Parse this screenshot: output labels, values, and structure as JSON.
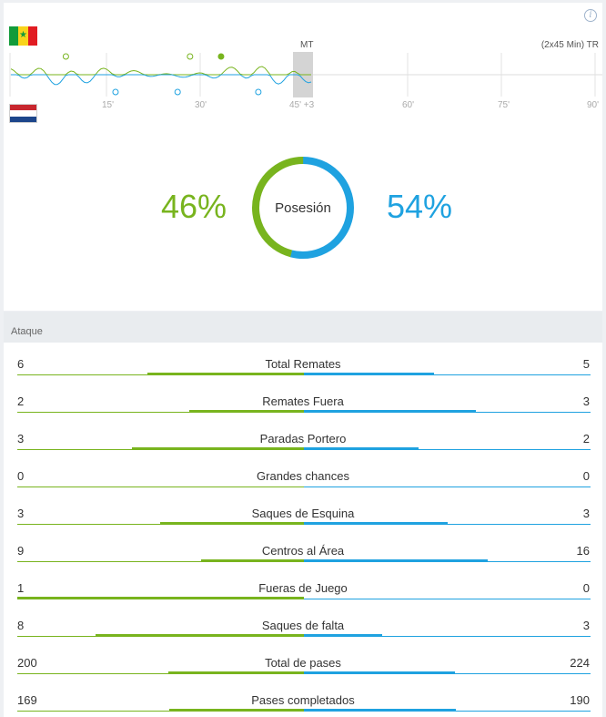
{
  "teams": {
    "home": {
      "name": "Senegal",
      "flag": "senegal-flag",
      "color": "#78b41e"
    },
    "away": {
      "name": "Netherlands",
      "flag": "netherlands-flag",
      "color": "#1fa2e0"
    }
  },
  "momentum": {
    "half_time_label": "MT",
    "format_label": "(2x45 Min) TR",
    "ticks": [
      "15'",
      "30'",
      "45' +3",
      "60'",
      "75'",
      "90'"
    ],
    "tick_minutes": [
      15,
      30,
      45,
      60,
      75,
      90
    ],
    "home_events": [
      {
        "minute": 9,
        "type": "shot"
      },
      {
        "minute": 29,
        "type": "shot"
      },
      {
        "minute": 34,
        "type": "goal-chance"
      }
    ],
    "away_events": [
      {
        "minute": 17,
        "type": "shot"
      },
      {
        "minute": 27,
        "type": "shot"
      },
      {
        "minute": 40,
        "type": "shot"
      }
    ]
  },
  "possession": {
    "label": "Posesión",
    "home_pct": 46,
    "away_pct": 54,
    "home_text": "46%",
    "away_text": "54%"
  },
  "section": {
    "title": "Ataque"
  },
  "stats": [
    {
      "label": "Total Remates",
      "home": "6",
      "away": "5",
      "hv": 6,
      "av": 5
    },
    {
      "label": "Remates Fuera",
      "home": "2",
      "away": "3",
      "hv": 2,
      "av": 3
    },
    {
      "label": "Paradas Portero",
      "home": "3",
      "away": "2",
      "hv": 3,
      "av": 2
    },
    {
      "label": "Grandes chances",
      "home": "0",
      "away": "0",
      "hv": 0,
      "av": 0
    },
    {
      "label": "Saques de Esquina",
      "home": "3",
      "away": "3",
      "hv": 3,
      "av": 3
    },
    {
      "label": "Centros al Área",
      "home": "9",
      "away": "16",
      "hv": 9,
      "av": 16
    },
    {
      "label": "Fueras de Juego",
      "home": "1",
      "away": "0",
      "hv": 1,
      "av": 0
    },
    {
      "label": "Saques de falta",
      "home": "8",
      "away": "3",
      "hv": 8,
      "av": 3
    },
    {
      "label": "Total de pases",
      "home": "200",
      "away": "224",
      "hv": 200,
      "av": 224
    },
    {
      "label": "Pases completados",
      "home": "169",
      "away": "190",
      "hv": 169,
      "av": 190
    }
  ]
}
